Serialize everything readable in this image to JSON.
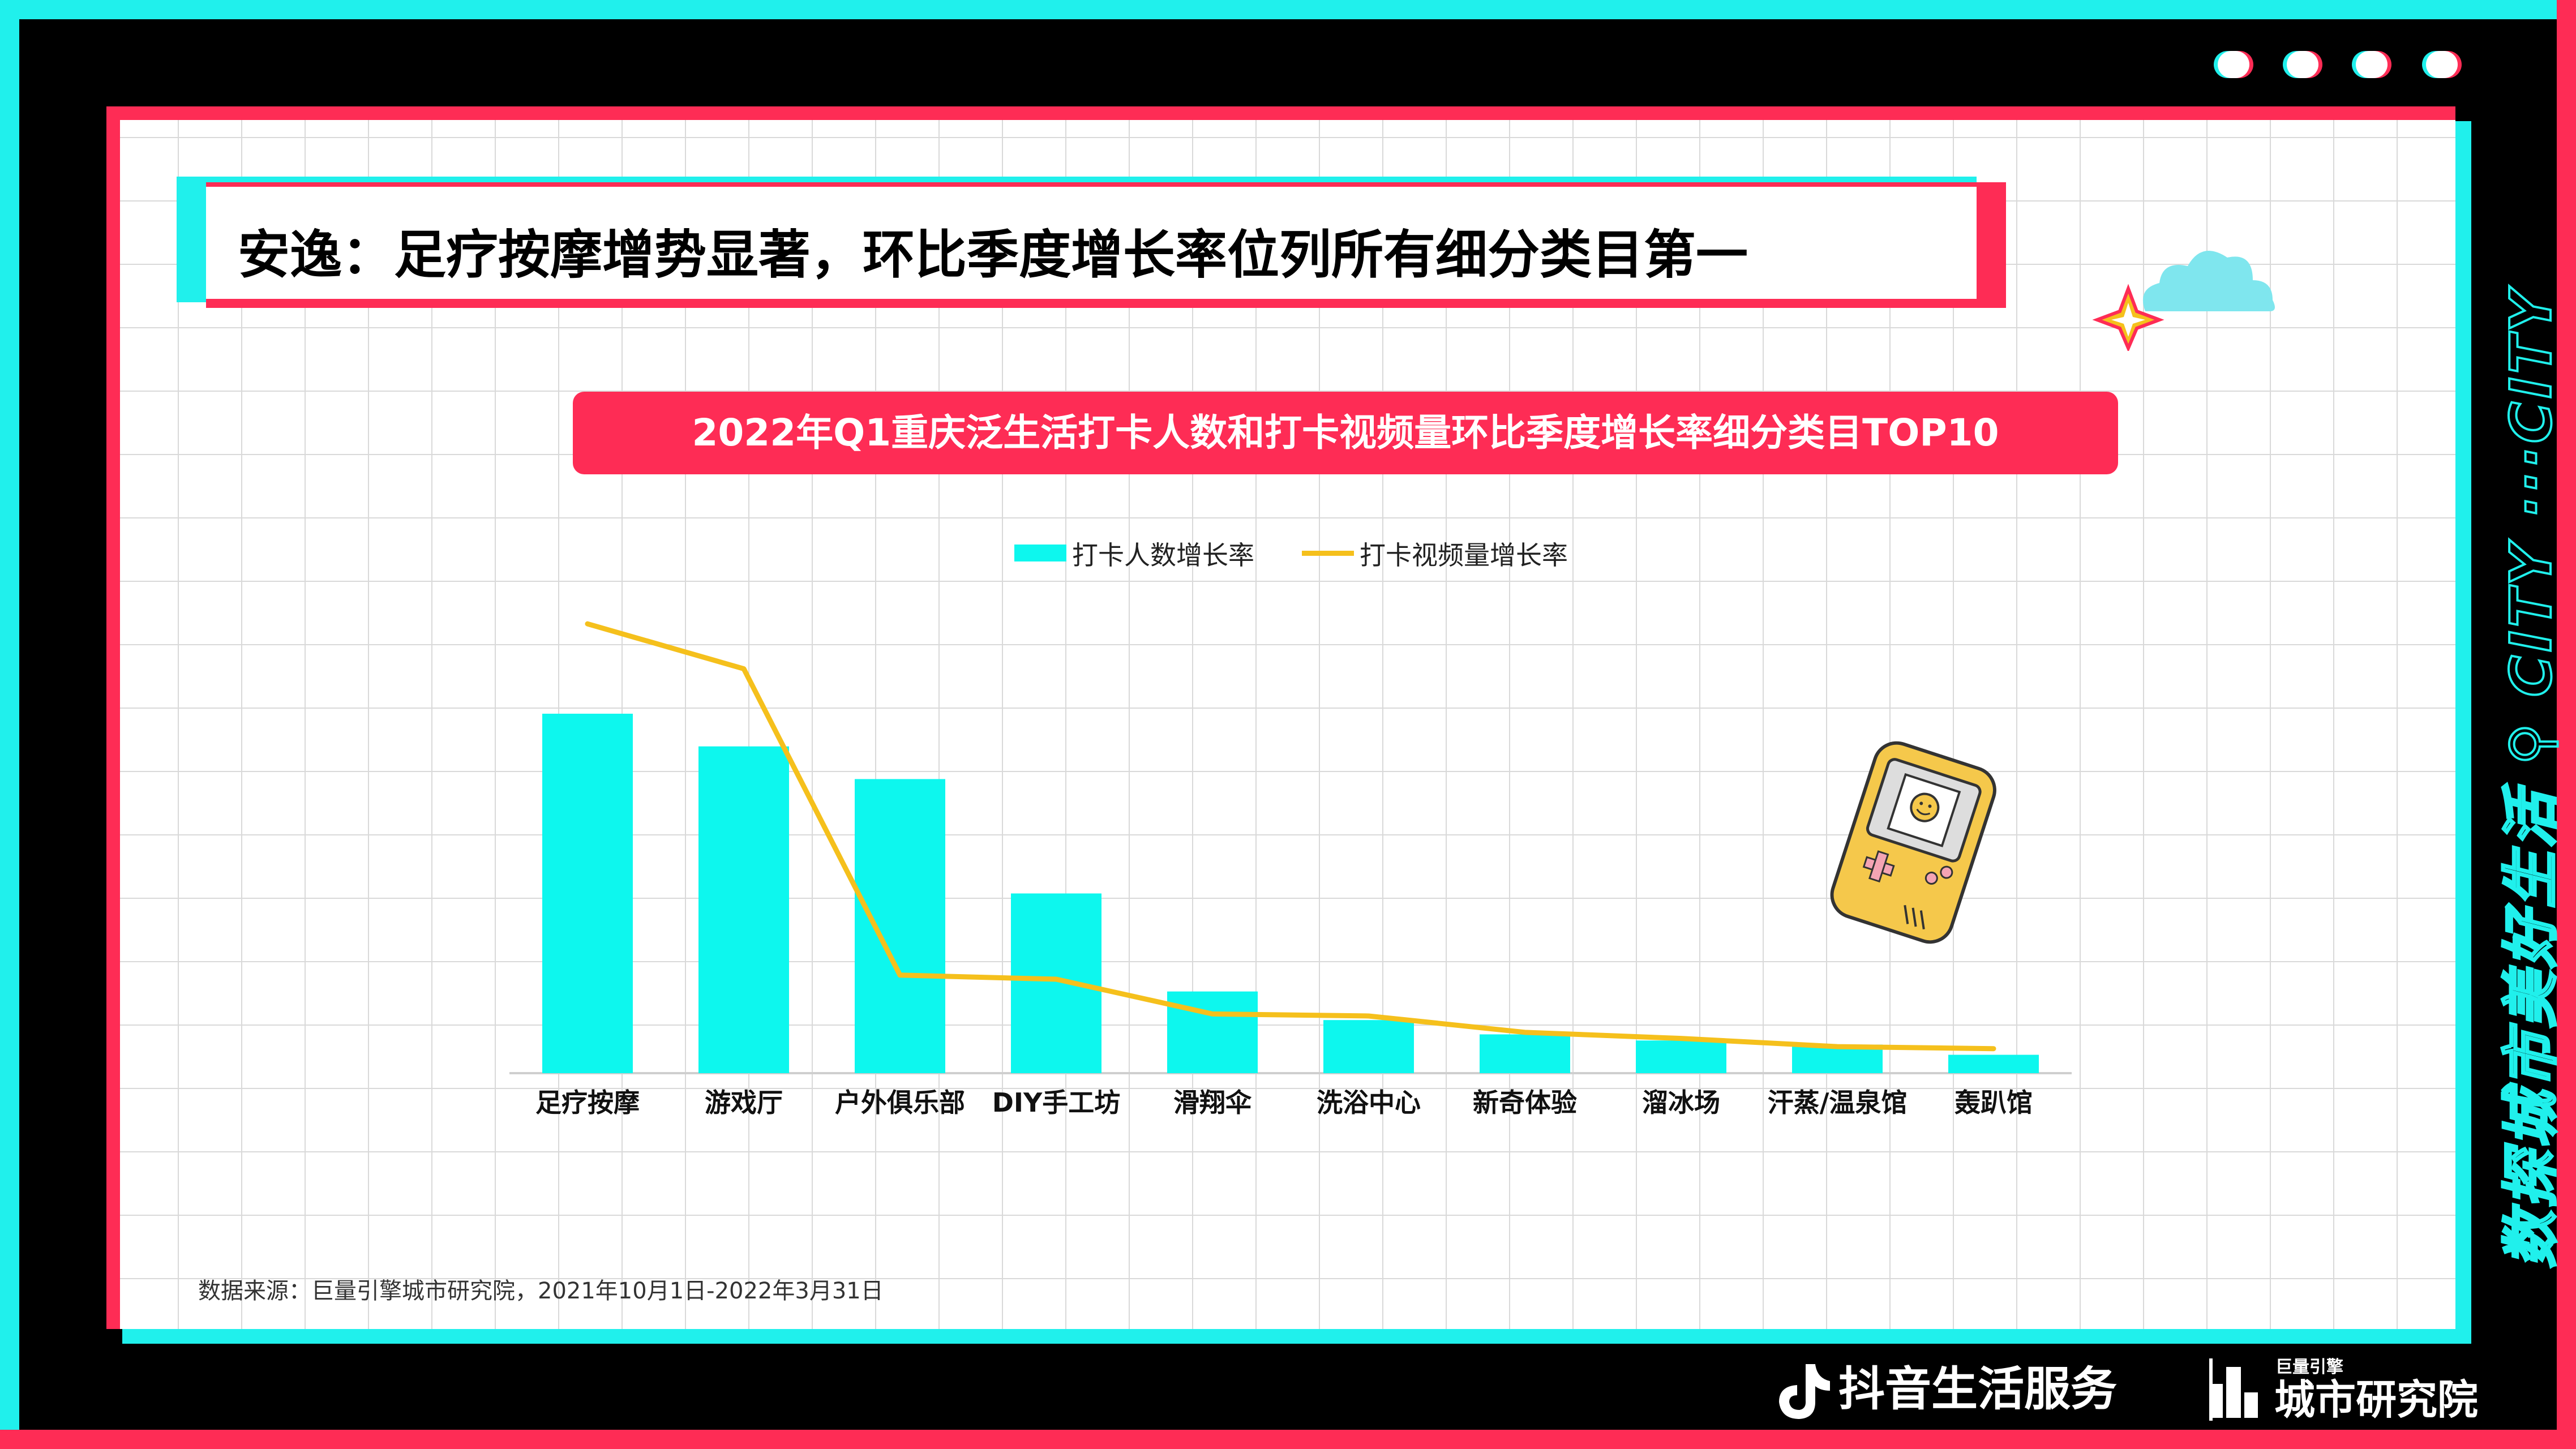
{
  "header": {
    "title": "安逸：足疗按摩增势显著，环比季度增长率位列所有细分类目第一"
  },
  "chart_data": {
    "type": "bar",
    "title": "2022年Q1重庆泛生活打卡人数和打卡视频量环比季度增长率细分类目TOP10",
    "categories": [
      "足疗按摩",
      "游戏厅",
      "户外俱乐部",
      "DIY手工坊",
      "滑翔伞",
      "洗浴中心",
      "新奇体验",
      "溜冰场",
      "汗蒸/温泉馆",
      "轰趴馆"
    ],
    "series": [
      {
        "name": "打卡人数增长率",
        "kind": "bar",
        "color": "#0df7ee",
        "values": [
          88,
          80,
          72,
          44,
          20,
          13,
          9.5,
          8,
          7,
          4.5
        ]
      },
      {
        "name": "打卡视频量增长率",
        "kind": "line",
        "color": "#f5c01c",
        "values": [
          110,
          99,
          24,
          23,
          14.5,
          14,
          10,
          8.5,
          6.5,
          6
        ]
      }
    ],
    "ylim": [
      0,
      120
    ],
    "legend_position": "top",
    "grid": false
  },
  "source": {
    "text": "数据来源：巨量引擎城市研究院，2021年10月1日-2022年3月31日"
  },
  "side": {
    "vertical_text": "数探城市美好生活 ⚲ CITY ···CITY"
  },
  "footer": {
    "brand_douyin": "抖音生活服务",
    "brand_institute_small": "巨量引擎",
    "brand_institute": "城市研究院"
  },
  "colors": {
    "cyan": "#20f0ec",
    "red": "#fe2c55",
    "bar": "#0df7ee",
    "line": "#f5c01c"
  }
}
